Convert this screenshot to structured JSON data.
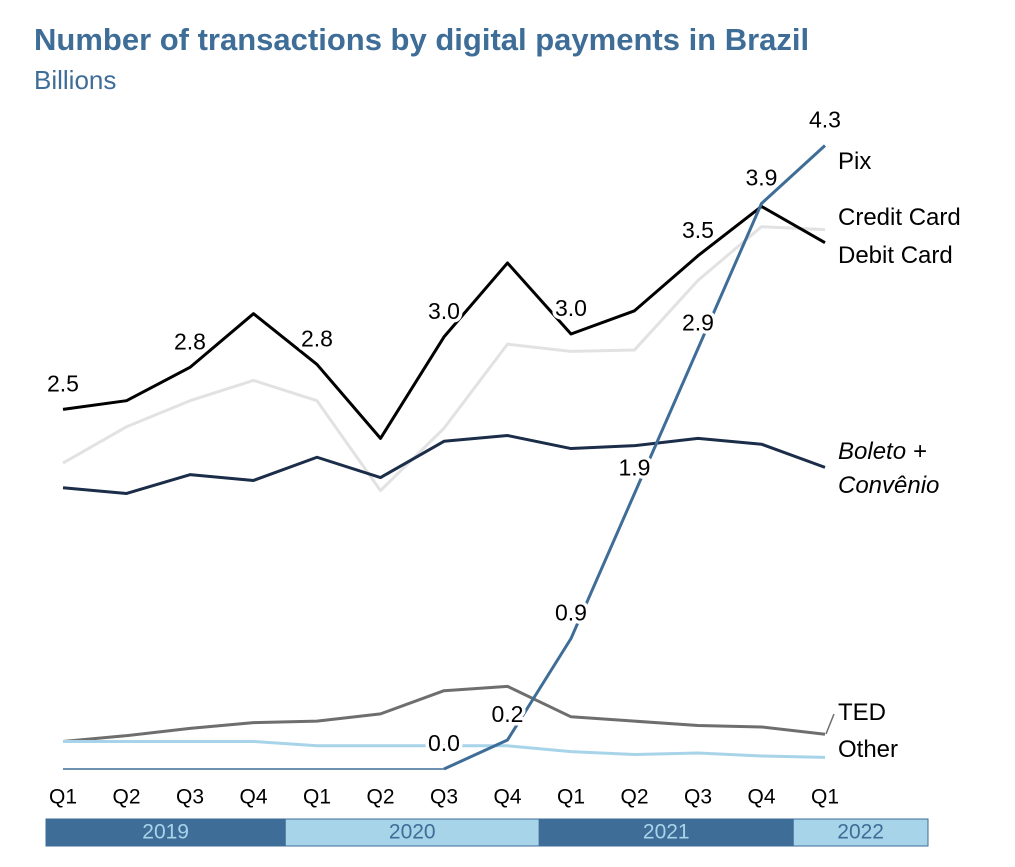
{
  "chart_data": {
    "type": "line",
    "title": "Number of transactions by digital payments in Brazil",
    "subtitle": "Billions",
    "categories": [
      "Q1",
      "Q2",
      "Q3",
      "Q4",
      "Q1",
      "Q2",
      "Q3",
      "Q4",
      "Q1",
      "Q2",
      "Q3",
      "Q4",
      "Q1"
    ],
    "year_groups": [
      {
        "label": "2019",
        "start": 0,
        "end": 3
      },
      {
        "label": "2020",
        "start": 4,
        "end": 7
      },
      {
        "label": "2021",
        "start": 8,
        "end": 11
      },
      {
        "label": "2022",
        "start": 12,
        "end": 12
      }
    ],
    "ylim": [
      0,
      4.4
    ],
    "grid": false,
    "series": [
      {
        "name": "Credit Card",
        "color": "#e2e2e2",
        "values": [
          2.11,
          2.36,
          2.54,
          2.68,
          2.54,
          1.92,
          2.35,
          2.93,
          2.88,
          2.89,
          3.37,
          3.74,
          3.72
        ]
      },
      {
        "name": "Boleto + Convênio",
        "color": "#1b2d48",
        "values": [
          1.94,
          1.9,
          2.03,
          1.99,
          2.15,
          2.01,
          2.26,
          2.3,
          2.21,
          2.23,
          2.28,
          2.24,
          2.08
        ]
      },
      {
        "name": "TED",
        "color": "#6e6e6e",
        "values": [
          0.19,
          0.23,
          0.28,
          0.32,
          0.33,
          0.38,
          0.54,
          0.57,
          0.36,
          0.33,
          0.3,
          0.29,
          0.24
        ]
      },
      {
        "name": "Other",
        "color": "#a8d4ea",
        "values": [
          0.19,
          0.19,
          0.19,
          0.19,
          0.16,
          0.16,
          0.16,
          0.16,
          0.12,
          0.1,
          0.11,
          0.09,
          0.08
        ]
      },
      {
        "name": "Debit Card",
        "color": "#000000",
        "values": [
          2.48,
          2.54,
          2.77,
          3.14,
          2.79,
          2.28,
          2.98,
          3.49,
          3.0,
          3.16,
          3.54,
          3.88,
          3.63
        ],
        "value_labels": [
          "2.5",
          null,
          "2.8",
          null,
          "2.8",
          null,
          "3.0",
          null,
          "3.0",
          null,
          "3.5",
          null,
          null
        ]
      },
      {
        "name": "Pix",
        "color": "#3e6d97",
        "values": [
          null,
          null,
          null,
          null,
          null,
          null,
          0,
          0.2,
          0.9,
          1.9,
          2.9,
          3.9,
          4.3
        ],
        "value_labels": [
          null,
          null,
          null,
          null,
          null,
          null,
          "0.0",
          "0.2",
          "0.9",
          "1.9",
          "2.9",
          "3.9",
          "4.3"
        ]
      }
    ]
  }
}
